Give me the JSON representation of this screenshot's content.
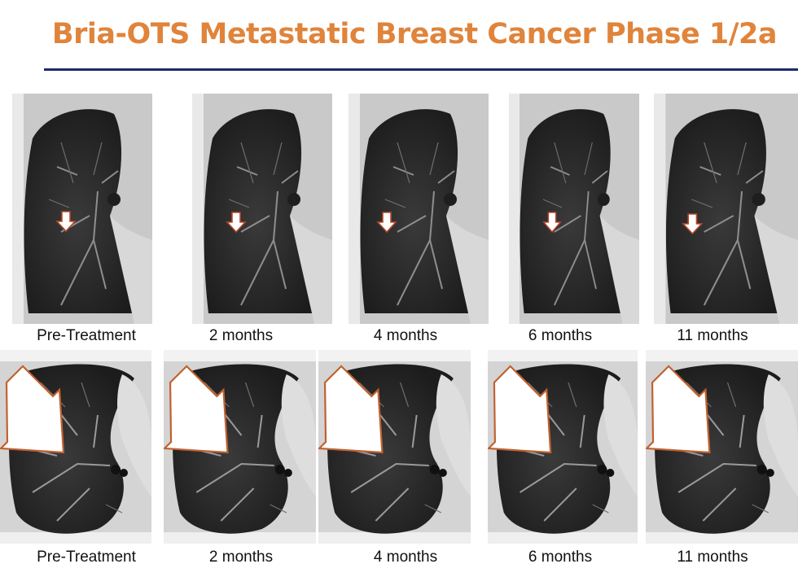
{
  "title": "Bria-OTS Metastatic Breast Cancer Phase 1/2a",
  "colors": {
    "title": "#e0843b",
    "rule": "#1f2a6b",
    "arrow_outline": "#b7472a"
  },
  "rows": [
    {
      "captions": [
        "Pre-Treatment",
        "2 months",
        "4 months",
        "6 months",
        "11 months"
      ]
    },
    {
      "captions": [
        "Pre-Treatment",
        "2 months",
        "4 months",
        "6 months",
        "11 months"
      ]
    }
  ]
}
